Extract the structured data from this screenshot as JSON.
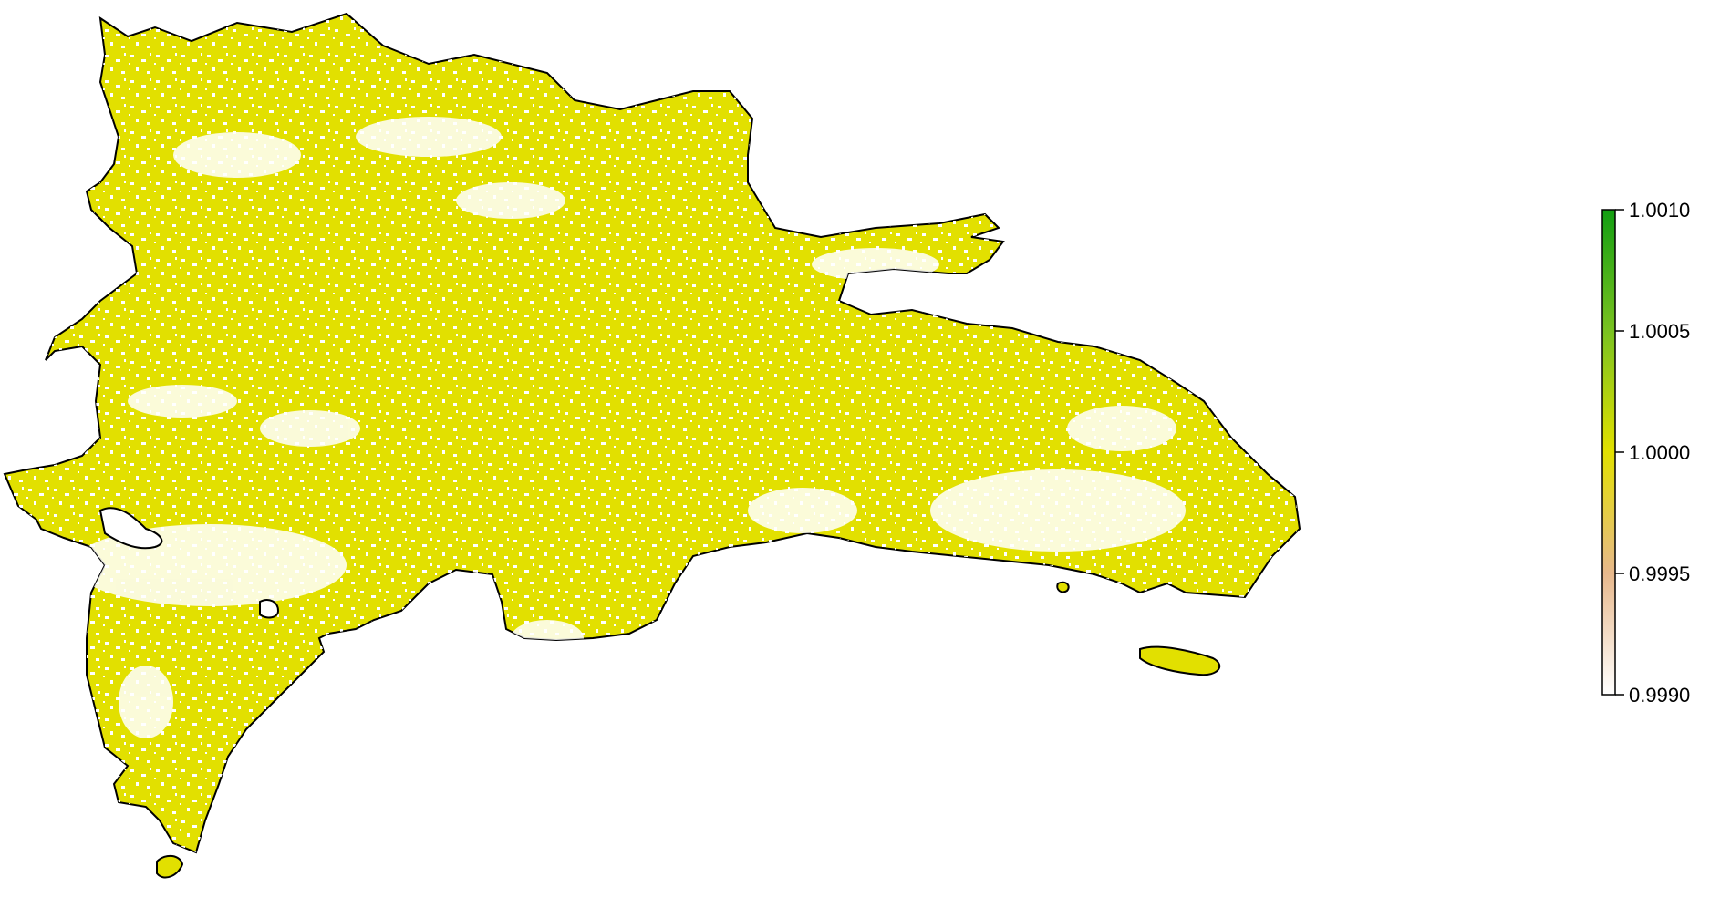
{
  "map": {
    "region_fill": "#e2e000",
    "outline_color": "#000000",
    "background": "#ffffff"
  },
  "legend": {
    "type": "continuous-colorbar",
    "ticks": [
      "1.0010",
      "1.0005",
      "1.0000",
      "0.9995",
      "0.9990"
    ],
    "colors": {
      "top": "#129e12",
      "upper_mid": "#7ac220",
      "mid": "#e2e000",
      "lower_mid": "#e7b88c",
      "bottom": "#ffffff"
    }
  }
}
